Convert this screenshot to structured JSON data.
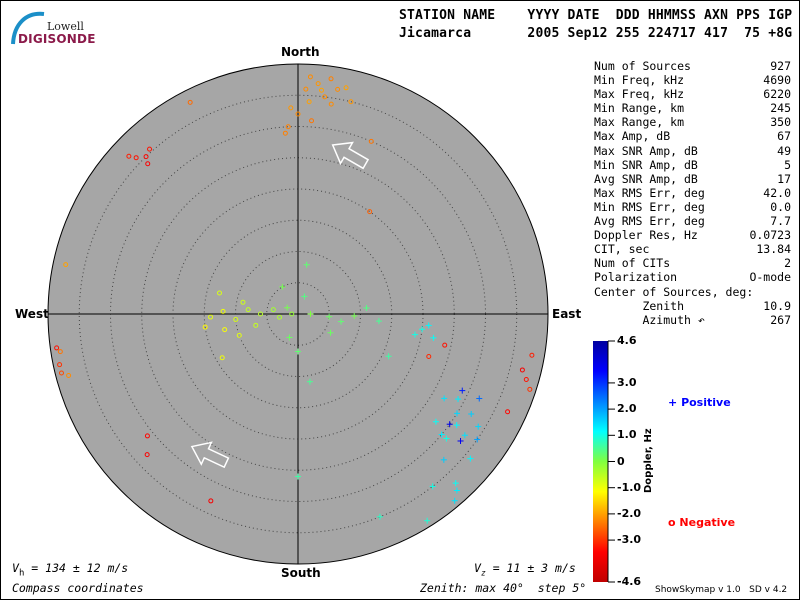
{
  "logo": {
    "line1": "Lowell",
    "line2": "DIGISONDE"
  },
  "header": {
    "labels": "STATION NAME    YYYY DATE  DDD HHMMSS AXN PPS IGP",
    "values": "Jicamarca       2005 Sep12 255 224717 417  75 +8G"
  },
  "stats": [
    {
      "label": "Num of Sources",
      "value": "927"
    },
    {
      "label": "Min Freq, kHz",
      "value": "4690"
    },
    {
      "label": "Max Freq, kHz",
      "value": "6220"
    },
    {
      "label": "Min Range, km",
      "value": "245"
    },
    {
      "label": "Max Range, km",
      "value": "350"
    },
    {
      "label": "Max Amp, dB",
      "value": "67"
    },
    {
      "label": "Max SNR Amp, dB",
      "value": "49"
    },
    {
      "label": "Min SNR Amp, dB",
      "value": "5"
    },
    {
      "label": "Avg SNR Amp, dB",
      "value": "17"
    },
    {
      "label": "Max RMS Err, deg",
      "value": "42.0"
    },
    {
      "label": "Min RMS Err, deg",
      "value": "0.0"
    },
    {
      "label": "Avg RMS Err, deg",
      "value": "7.7"
    },
    {
      "label": "Doppler Res, Hz",
      "value": "0.0723"
    },
    {
      "label": "CIT, sec",
      "value": "13.84"
    },
    {
      "label": "Num of CITs",
      "value": "2"
    },
    {
      "label": "Polarization",
      "value": "O-mode"
    },
    {
      "label": "Center of Sources, deg:",
      "value": ""
    },
    {
      "label": "       Zenith",
      "value": "10.9"
    },
    {
      "label": "       Azimuth ↶",
      "value": "267"
    }
  ],
  "compass": {
    "north": "North",
    "south": "South",
    "east": "East",
    "west": "West"
  },
  "footer": {
    "vh": "= 134 ± 12 m/s",
    "vh_sym": "V",
    "vh_sub": "h",
    "vz": "= 11 ± 3 m/s",
    "vz_sym": "V",
    "vz_sub": "z",
    "coords": "Compass coordinates",
    "zenith": "Zenith: max 40°  step 5°",
    "version": "ShowSkymap v 1.0   SD v 4.2"
  },
  "colorbar": {
    "title": "Doppler, Hz",
    "ticks": [
      "4.6",
      "3.0",
      "2.0",
      "1.0",
      "0",
      "-1.0",
      "-2.0",
      "-3.0",
      "-4.6"
    ],
    "range": [
      -4.6,
      4.6
    ],
    "colors": [
      "#c00000",
      "#ff0000",
      "#ff8000",
      "#ffff00",
      "#80ff40",
      "#00ffff",
      "#0080ff",
      "#0000ff",
      "#0000a0"
    ]
  },
  "legend": {
    "positive": {
      "symbol": "+",
      "label": "Positive",
      "color": "#0000ff"
    },
    "negative": {
      "symbol": "o",
      "label": "Negative",
      "color": "#ff0000"
    }
  },
  "chart_data": {
    "type": "scatter",
    "projection": "polar sky map, compass coordinates",
    "zenith_max_deg": 40,
    "zenith_step_deg": 5,
    "background": "#a6a6a6",
    "fields": [
      "zenith_deg",
      "azimuth_deg",
      "doppler_hz"
    ],
    "points": [
      [
        36,
        2,
        -2.2
      ],
      [
        37,
        5,
        -2.1
      ],
      [
        38,
        8,
        -2.3
      ],
      [
        35,
        7,
        -2.2
      ],
      [
        34,
        3,
        -2.0
      ],
      [
        36.5,
        10,
        -2.2
      ],
      [
        33,
        358,
        -2.1
      ],
      [
        30,
        357,
        -2.3
      ],
      [
        32,
        0,
        -2.2
      ],
      [
        37,
        12,
        -2.0
      ],
      [
        35,
        14,
        -2.1
      ],
      [
        38,
        3,
        -2.2
      ],
      [
        31,
        4,
        -2.4
      ],
      [
        29,
        356,
        -2.3
      ],
      [
        36,
        6,
        -2.0
      ],
      [
        34,
        9,
        -2.2
      ],
      [
        36,
        314,
        -3.3
      ],
      [
        35,
        316,
        -3.4
      ],
      [
        37,
        313,
        -3.2
      ],
      [
        35.5,
        318,
        -3.3
      ],
      [
        34,
        315,
        -3.5
      ],
      [
        38,
        333,
        -2.5
      ],
      [
        30,
        23,
        -2.4
      ],
      [
        20,
        35,
        -2.6
      ],
      [
        14,
        268,
        -0.9
      ],
      [
        12,
        272,
        -1.0
      ],
      [
        10,
        265,
        -0.8
      ],
      [
        8,
        275,
        -0.6
      ],
      [
        6,
        270,
        -0.5
      ],
      [
        4,
        280,
        -0.3
      ],
      [
        3,
        260,
        -0.4
      ],
      [
        2,
        300,
        0.1
      ],
      [
        5,
        95,
        0.2
      ],
      [
        7,
        100,
        0.3
      ],
      [
        9,
        92,
        0.1
      ],
      [
        11,
        85,
        0.4
      ],
      [
        13,
        95,
        0.5
      ],
      [
        6,
        120,
        0.2
      ],
      [
        10,
        250,
        -0.9
      ],
      [
        12,
        258,
        -1.1
      ],
      [
        15,
        262,
        -1.2
      ],
      [
        9,
        282,
        -0.7
      ],
      [
        7,
        255,
        -0.6
      ],
      [
        3,
        20,
        0.4
      ],
      [
        8,
        10,
        0.3
      ],
      [
        4,
        200,
        0.2
      ],
      [
        6,
        180,
        0.3
      ],
      [
        11,
        170,
        0.5
      ],
      [
        14,
        240,
        -1.0
      ],
      [
        13,
        285,
        -0.8
      ],
      [
        2,
        90,
        0.0
      ],
      [
        1,
        270,
        -0.2
      ],
      [
        16,
        115,
        0.6
      ],
      [
        5,
        330,
        0.1
      ],
      [
        20,
        97,
        1.0
      ],
      [
        21,
        95,
        1.2
      ],
      [
        22,
        100,
        1.1
      ],
      [
        19,
        100,
        1.0
      ],
      [
        27,
        120,
        1.4
      ],
      [
        29,
        118,
        1.3
      ],
      [
        30,
        122,
        1.5
      ],
      [
        31,
        125,
        1.2
      ],
      [
        32,
        120,
        1.6
      ],
      [
        33,
        126,
        1.4
      ],
      [
        28,
        128,
        1.1
      ],
      [
        30,
        130,
        1.3
      ],
      [
        34,
        122,
        1.5
      ],
      [
        35,
        125,
        2.0
      ],
      [
        32,
        115,
        2.5
      ],
      [
        29,
        115,
        3.2
      ],
      [
        31,
        130,
        1.0
      ],
      [
        36,
        130,
        1.2
      ],
      [
        33,
        135,
        1.6
      ],
      [
        37,
        137,
        1.1
      ],
      [
        38,
        138,
        1.3
      ],
      [
        39,
        140,
        1.4
      ],
      [
        35,
        142,
        1.0
      ],
      [
        33,
        128,
        3.6
      ],
      [
        30,
        126,
        3.8
      ],
      [
        38,
        106,
        -3.3
      ],
      [
        37,
        104,
        -3.6
      ],
      [
        39,
        108,
        -3.0
      ],
      [
        38,
        100,
        -3.2
      ],
      [
        37,
        115,
        -3.4
      ],
      [
        24,
        102,
        -3.3
      ],
      [
        22,
        108,
        -3.1
      ],
      [
        38.5,
        261,
        -2.4
      ],
      [
        39,
        258,
        -3.0
      ],
      [
        39,
        256,
        -2.8
      ],
      [
        39,
        262,
        -3.3
      ],
      [
        38,
        255,
        -2.2
      ],
      [
        38,
        282,
        -2.0
      ],
      [
        31,
        231,
        -3.4
      ],
      [
        33,
        227,
        -3.5
      ],
      [
        33,
        205,
        -3.6
      ],
      [
        26,
        180,
        0.6
      ],
      [
        35,
        158,
        0.8
      ],
      [
        39,
        148,
        0.9
      ]
    ]
  }
}
